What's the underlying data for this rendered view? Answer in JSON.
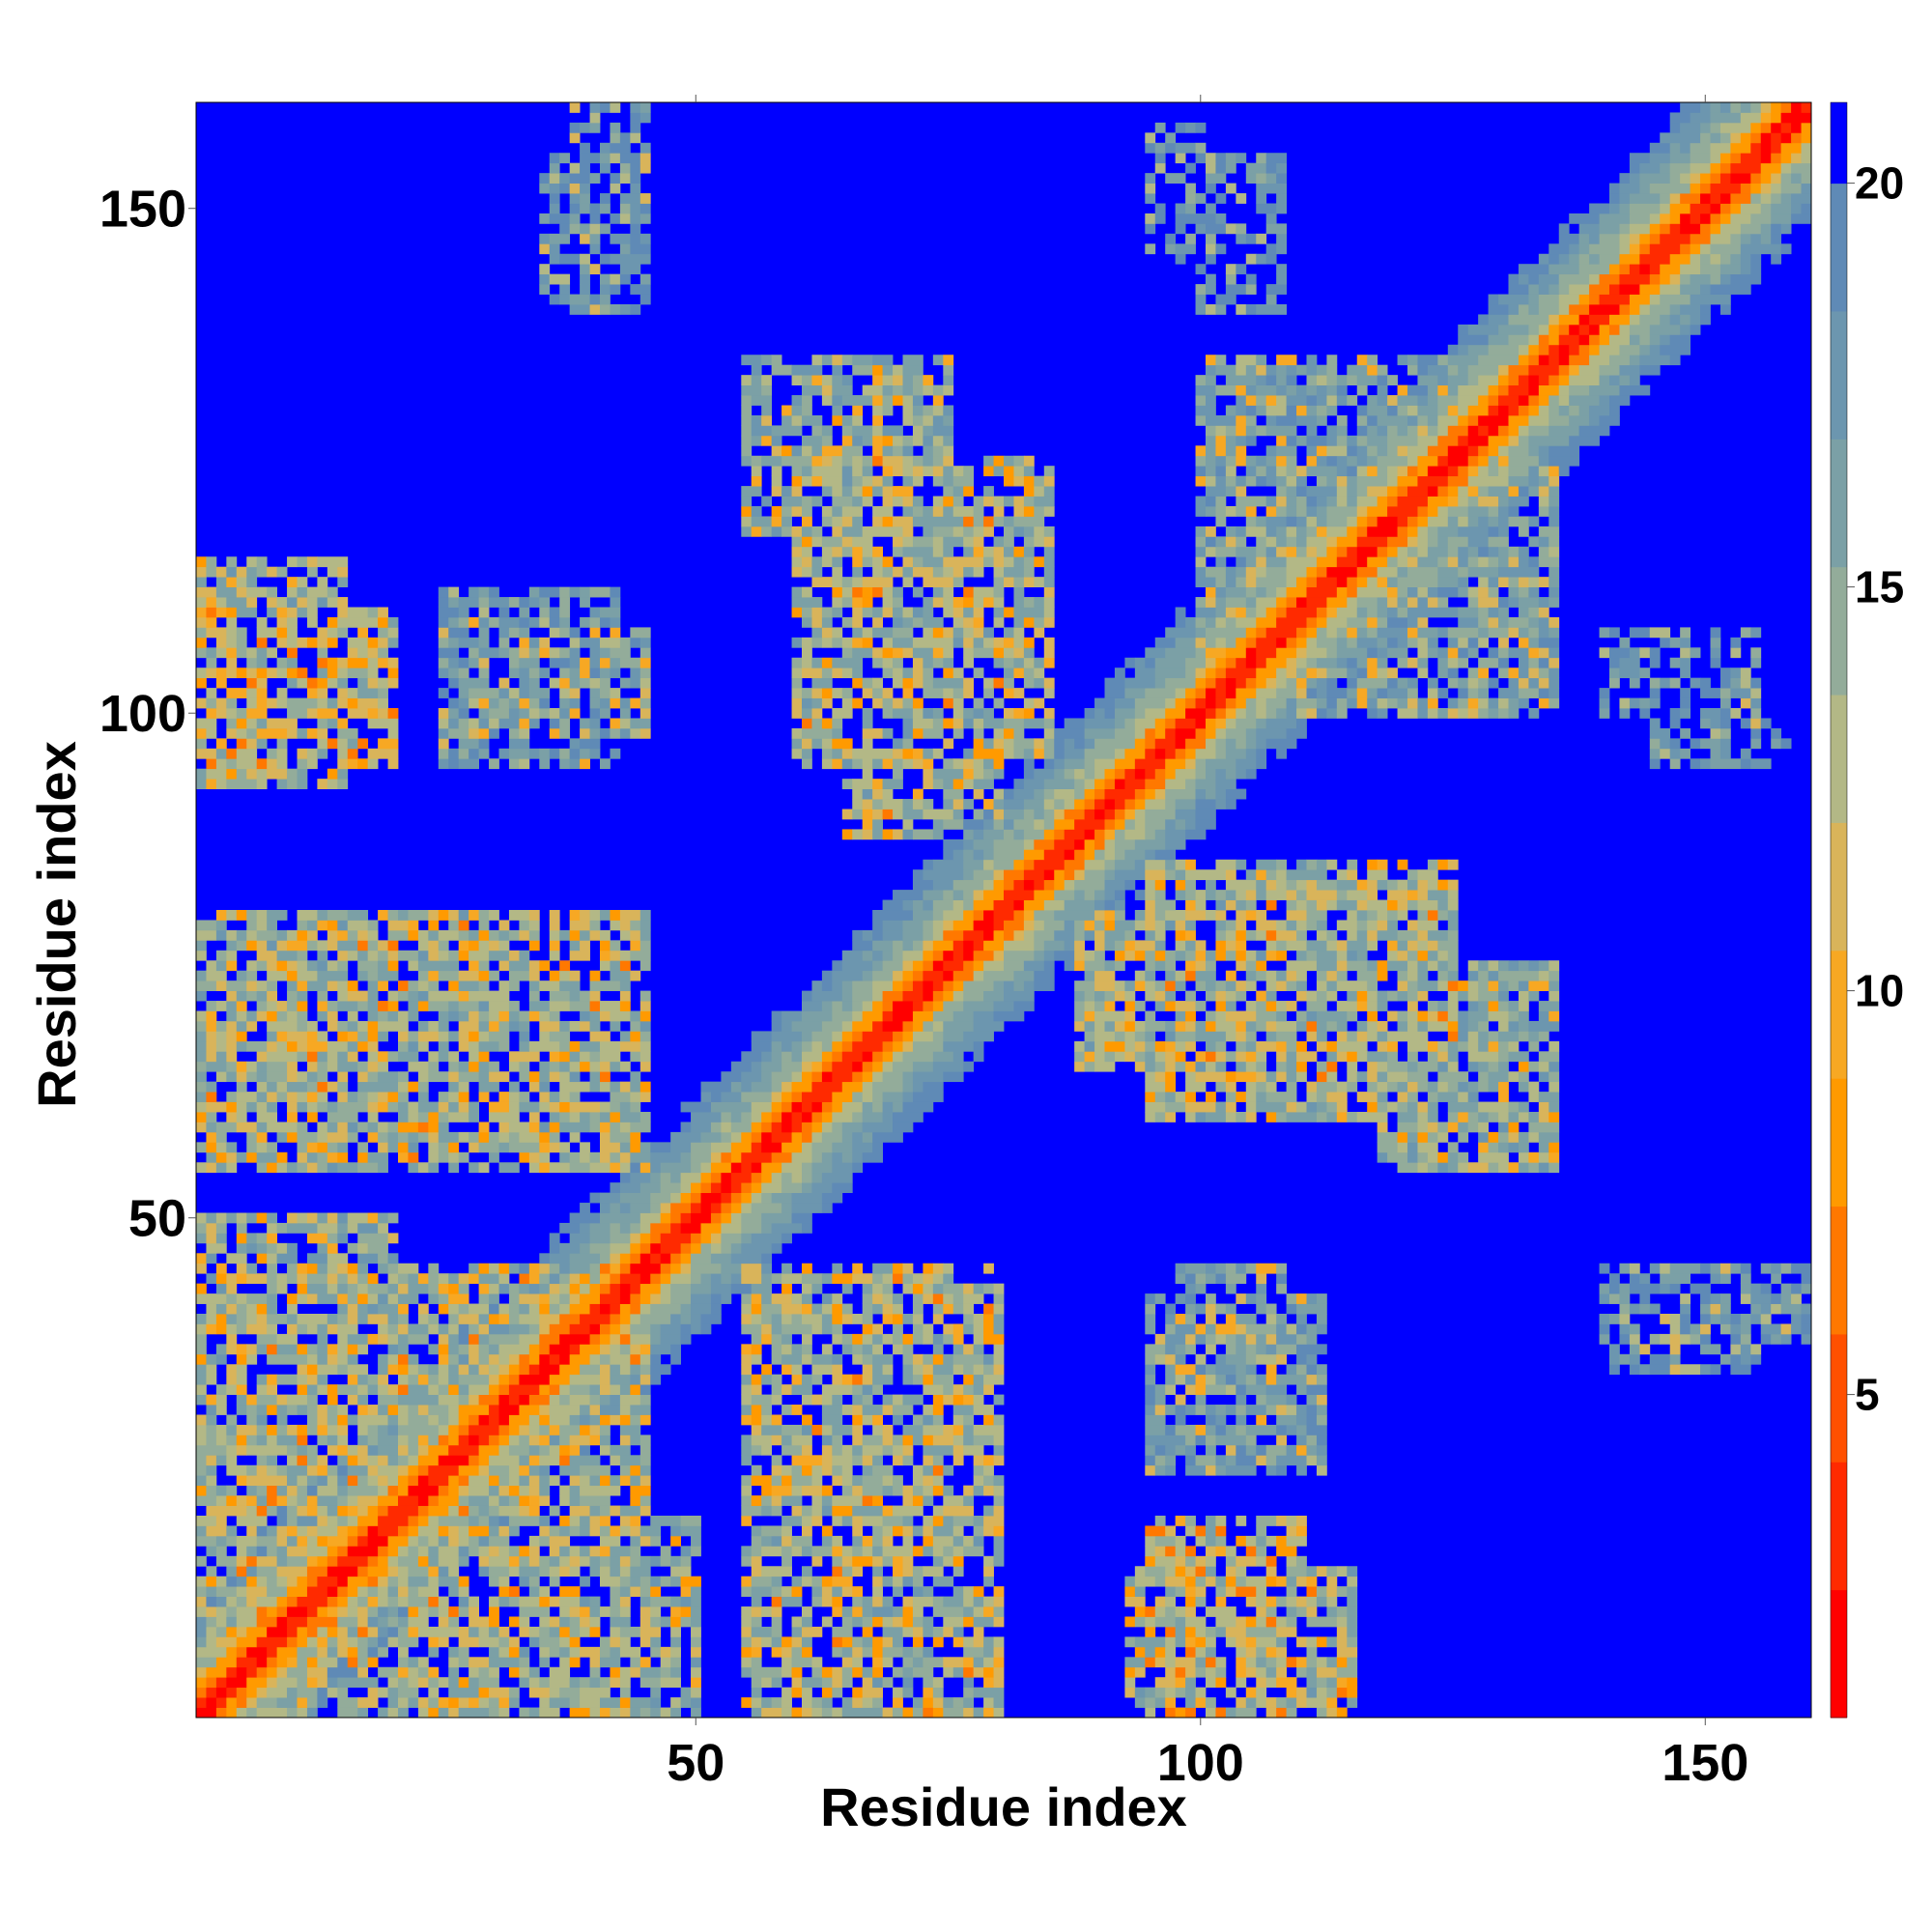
{
  "chart_data": {
    "type": "heatmap",
    "title": "",
    "xlabel": "Residue index",
    "ylabel": "Residue index",
    "n_residues": 160,
    "xlim": [
      1,
      160
    ],
    "ylim": [
      1,
      160
    ],
    "x_ticks": [
      50,
      100,
      150
    ],
    "y_ticks": [
      50,
      100,
      150
    ],
    "grid": false,
    "colorbar": {
      "ticks": [
        5,
        10,
        15,
        20
      ],
      "range": [
        1,
        21
      ],
      "min_color": "#ff0000",
      "max_color": "#0000ff",
      "palette": [
        "#ff0000",
        "#ff2a00",
        "#ff5000",
        "#ff7800",
        "#ff9a00",
        "#f7a823",
        "#d9b45a",
        "#b3b886",
        "#93ac9a",
        "#7ba0a6",
        "#6c96af",
        "#5f8ab6",
        "#0000ff"
      ],
      "saturation_value": 20,
      "placement": "right"
    },
    "description_of_values": "pairwise residue distances; strong diagonal band; off-diagonal contact blocks",
    "contact_blocks": [
      {
        "x": [
          1,
          45
        ],
        "y": [
          1,
          45
        ],
        "level": 13
      },
      {
        "x": [
          1,
          20
        ],
        "y": [
          95,
          110
        ],
        "level": 12
      },
      {
        "x": [
          28,
          45
        ],
        "y": [
          98,
          108
        ],
        "level": 15
      },
      {
        "x": [
          1,
          45
        ],
        "y": [
          55,
          80
        ],
        "level": 13
      },
      {
        "x": [
          1,
          25
        ],
        "y": [
          1,
          20
        ],
        "level": 12
      },
      {
        "x": [
          30,
          50
        ],
        "y": [
          1,
          20
        ],
        "level": 14
      },
      {
        "x": [
          55,
          80
        ],
        "y": [
          1,
          35
        ],
        "level": 14
      },
      {
        "x": [
          93,
          115
        ],
        "y": [
          1,
          15
        ],
        "level": 13
      },
      {
        "x": [
          95,
          112
        ],
        "y": [
          25,
          42
        ],
        "level": 16
      },
      {
        "x": [
          60,
          85
        ],
        "y": [
          95,
          125
        ],
        "level": 13
      },
      {
        "x": [
          55,
          75
        ],
        "y": [
          120,
          135
        ],
        "level": 15
      },
      {
        "x": [
          105,
          135
        ],
        "y": [
          100,
          125
        ],
        "level": 15
      },
      {
        "x": [
          88,
          115
        ],
        "y": [
          65,
          80
        ],
        "level": 13
      },
      {
        "x": [
          118,
          135
        ],
        "y": [
          55,
          75
        ],
        "level": 14
      },
      {
        "x": [
          140,
          160
        ],
        "y": [
          38,
          45
        ],
        "level": 17
      },
      {
        "x": [
          145,
          158
        ],
        "y": [
          95,
          100
        ],
        "level": 18
      },
      {
        "x": [
          35,
          45
        ],
        "y": [
          140,
          155
        ],
        "level": 17
      },
      {
        "x": [
          100,
          108
        ],
        "y": [
          140,
          155
        ],
        "level": 18
      }
    ]
  }
}
